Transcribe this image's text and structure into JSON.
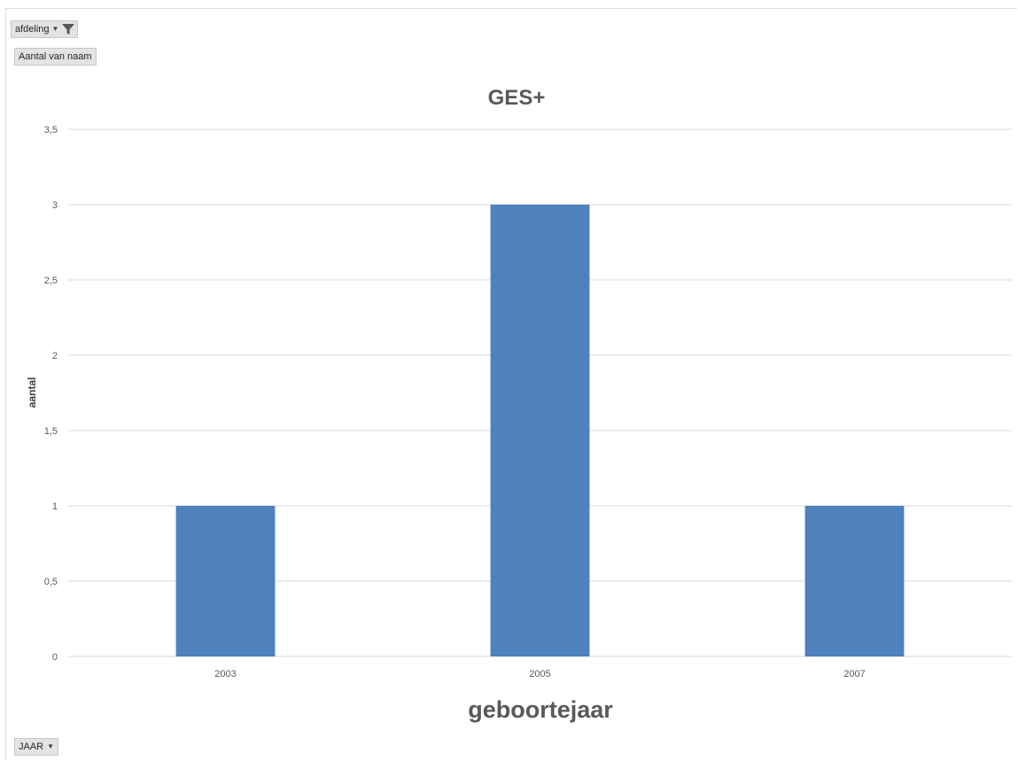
{
  "filter_button": {
    "label": "afdeling",
    "icon": "funnel-icon"
  },
  "value_button": {
    "label": "Aantal van naam"
  },
  "axis_button": {
    "label": "JAAR"
  },
  "chart_data": {
    "type": "bar",
    "title": "GES+",
    "xlabel": "geboortejaar",
    "ylabel": "aantal",
    "categories": [
      "2003",
      "2005",
      "2007"
    ],
    "values": [
      1,
      3,
      1
    ],
    "ylim": [
      0,
      3.5
    ],
    "yticks": [
      0,
      0.5,
      1,
      1.5,
      2,
      2.5,
      3,
      3.5
    ],
    "ytick_labels": [
      "0",
      "0,5",
      "1",
      "1,5",
      "2",
      "2,5",
      "3",
      "3,5"
    ],
    "grid": true,
    "legend": "none",
    "bar_color": "#4f81bd",
    "grid_color": "#d9d9d9",
    "text_color": "#595959"
  }
}
